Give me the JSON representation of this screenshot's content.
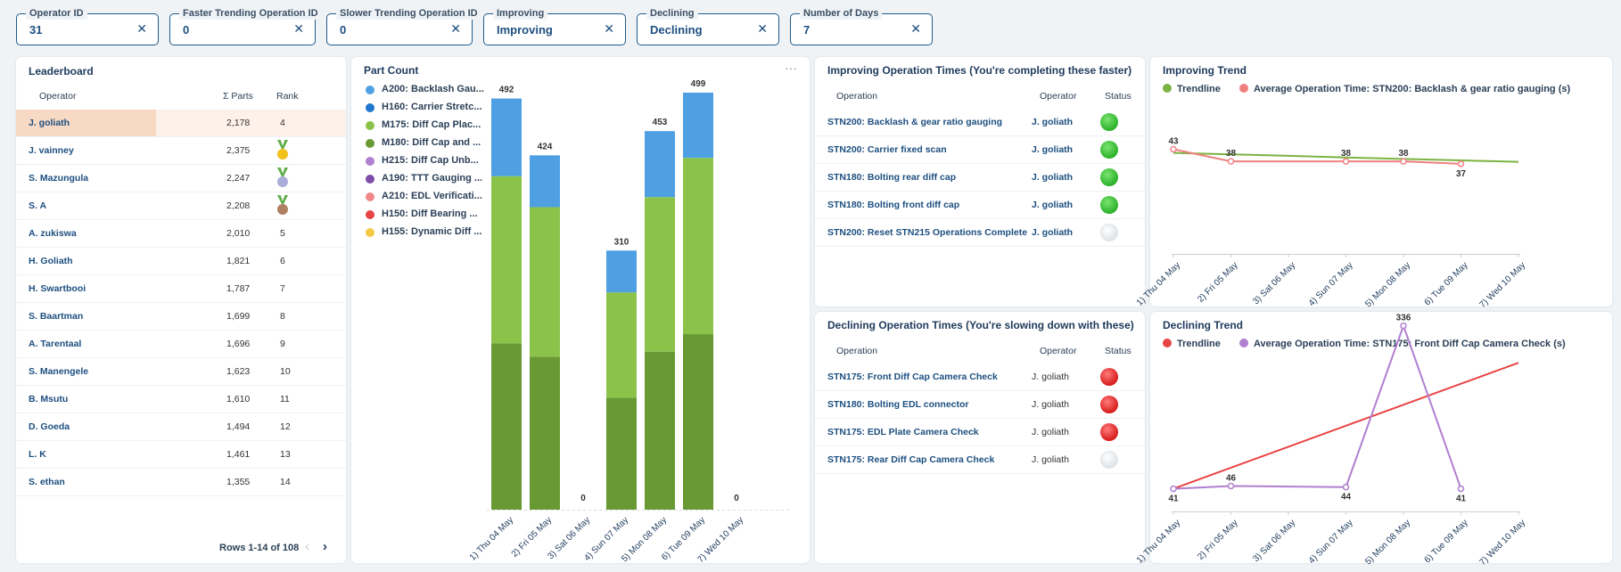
{
  "filters": [
    {
      "label": "Operator ID",
      "value": "31"
    },
    {
      "label": "Faster Trending Operation ID",
      "value": "0"
    },
    {
      "label": "Slower Trending Operation ID",
      "value": "0"
    },
    {
      "label": "Improving",
      "value": "Improving"
    },
    {
      "label": "Declining",
      "value": "Declining"
    },
    {
      "label": "Number of Days",
      "value": "7"
    }
  ],
  "leaderboard": {
    "title": "Leaderboard",
    "col_operator": "Operator",
    "col_parts": "Σ Parts",
    "col_rank": "Rank",
    "rows": [
      {
        "operator": "J. goliath",
        "parts": "2,178",
        "rank": "4",
        "medal": "",
        "highlight": true
      },
      {
        "operator": "J. vainney",
        "parts": "2,375",
        "rank": "",
        "medal": "gold",
        "highlight": false
      },
      {
        "operator": "S. Mazungula",
        "parts": "2,247",
        "rank": "",
        "medal": "silver",
        "highlight": false
      },
      {
        "operator": "S. A",
        "parts": "2,208",
        "rank": "",
        "medal": "bronze",
        "highlight": false
      },
      {
        "operator": "A. zukiswa",
        "parts": "2,010",
        "rank": "5",
        "medal": "",
        "highlight": false
      },
      {
        "operator": "H. Goliath",
        "parts": "1,821",
        "rank": "6",
        "medal": "",
        "highlight": false
      },
      {
        "operator": "H. Swartbooi",
        "parts": "1,787",
        "rank": "7",
        "medal": "",
        "highlight": false
      },
      {
        "operator": "S. Baartman",
        "parts": "1,699",
        "rank": "8",
        "medal": "",
        "highlight": false
      },
      {
        "operator": "A. Tarentaal",
        "parts": "1,696",
        "rank": "9",
        "medal": "",
        "highlight": false
      },
      {
        "operator": "S. Manengele",
        "parts": "1,623",
        "rank": "10",
        "medal": "",
        "highlight": false
      },
      {
        "operator": "B. Msutu",
        "parts": "1,610",
        "rank": "11",
        "medal": "",
        "highlight": false
      },
      {
        "operator": "D. Goeda",
        "parts": "1,494",
        "rank": "12",
        "medal": "",
        "highlight": false
      },
      {
        "operator": "L. K",
        "parts": "1,461",
        "rank": "13",
        "medal": "",
        "highlight": false
      },
      {
        "operator": "S. ethan",
        "parts": "1,355",
        "rank": "14",
        "medal": "",
        "highlight": false
      }
    ],
    "pagination": "Rows 1-14 of 108",
    "prev_icon": "chevron-left-icon",
    "next_icon": "chevron-right-icon"
  },
  "part_count": {
    "title": "Part Count",
    "more_icon": "more-horizontal-icon",
    "legend": [
      {
        "label": "A200: Backlash Gau...",
        "color": "#4f9fe3"
      },
      {
        "label": "H160: Carrier Stretc...",
        "color": "#1f77d0"
      },
      {
        "label": "M175: Diff Cap Plac...",
        "color": "#8bc34a"
      },
      {
        "label": "M180: Diff Cap and ...",
        "color": "#689933"
      },
      {
        "label": "H215: Diff Cap Unb...",
        "color": "#b07fd0"
      },
      {
        "label": "A190: TTT Gauging ...",
        "color": "#7e4ca8"
      },
      {
        "label": "A210: EDL Verificati...",
        "color": "#f08a8a"
      },
      {
        "label": "H150: Diff Bearing ...",
        "color": "#e84545"
      },
      {
        "label": "H155: Dynamic Diff ...",
        "color": "#f5c842"
      }
    ]
  },
  "improving_table": {
    "title": "Improving Operation Times (You're completing these faster)",
    "col_operation": "Operation",
    "col_operator": "Operator",
    "col_status": "Status",
    "rows": [
      {
        "operation": "STN200: Backlash & gear ratio gauging",
        "operator": "J. goliath",
        "status": "green"
      },
      {
        "operation": "STN200: Carrier fixed scan",
        "operator": "J. goliath",
        "status": "green"
      },
      {
        "operation": "STN180: Bolting rear diff cap",
        "operator": "J. goliath",
        "status": "green"
      },
      {
        "operation": "STN180: Bolting front diff cap",
        "operator": "J. goliath",
        "status": "green"
      },
      {
        "operation": "STN200: Reset STN215 Operations Complete",
        "operator": "J. goliath",
        "status": "empty"
      }
    ]
  },
  "declining_table": {
    "title": "Declining Operation Times (You're slowing down with these)",
    "col_operation": "Operation",
    "col_operator": "Operator",
    "col_status": "Status",
    "rows": [
      {
        "operation": "STN175: Front Diff Cap Camera Check",
        "operator": "J. goliath",
        "status": "red"
      },
      {
        "operation": "STN180: Bolting EDL connector",
        "operator": "J. goliath",
        "status": "red"
      },
      {
        "operation": "STN175: EDL Plate Camera Check",
        "operator": "J. goliath",
        "status": "red"
      },
      {
        "operation": "STN175: Rear Diff Cap Camera Check",
        "operator": "J. goliath",
        "status": "empty"
      }
    ]
  },
  "improving_trend": {
    "title": "Improving Trend"
  },
  "declining_trend": {
    "title": "Declining Trend"
  },
  "chart_data": [
    {
      "type": "bar",
      "title": "Part Count",
      "stacked": true,
      "categories": [
        "1) Thu 04 May",
        "2) Fri 05 May",
        "3) Sat 06 May",
        "4) Sun 07 May",
        "5) Mon 08 May",
        "6) Tue 09 May",
        "7) Wed 10 May"
      ],
      "totals": [
        492,
        424,
        0,
        310,
        453,
        499,
        0
      ],
      "series": [
        {
          "name": "M180: Diff Cap and ...",
          "color": "#689933",
          "values": [
            199,
            183,
            0,
            134,
            189,
            210,
            0
          ]
        },
        {
          "name": "M175: Diff Cap Plac...",
          "color": "#8bc34a",
          "values": [
            200,
            179,
            0,
            126,
            185,
            211,
            0
          ]
        },
        {
          "name": "A200: Backlash Gau...",
          "color": "#4f9fe3",
          "values": [
            93,
            62,
            0,
            50,
            79,
            78,
            0
          ]
        }
      ],
      "legend_position": "left",
      "ylim": [
        0,
        499
      ]
    },
    {
      "type": "line",
      "title": "Improving Trend",
      "categories": [
        "1) Thu 04 May",
        "2) Fri 05 May",
        "3) Sat 06 May",
        "4) Sun 07 May",
        "5) Mon 08 May",
        "6) Tue 09 May",
        "7) Wed 10 May"
      ],
      "series": [
        {
          "name": "Trendline",
          "color": "#7cb342",
          "values": [
            41.5,
            40.9,
            40.3,
            39.6,
            39.0,
            38.4,
            37.8
          ]
        },
        {
          "name": "Average Operation Time: STN200: Backlash & gear ratio gauging (s)",
          "color": "#f08080",
          "values": [
            43,
            38,
            null,
            38,
            38,
            37,
            null
          ],
          "labels": [
            "43",
            "38",
            "",
            "38",
            "38",
            "37",
            ""
          ]
        }
      ],
      "legend_position": "top-left",
      "ylim": [
        0,
        45
      ]
    },
    {
      "type": "line",
      "title": "Declining Trend",
      "categories": [
        "1) Thu 04 May",
        "2) Fri 05 May",
        "3) Sat 06 May",
        "4) Sun 07 May",
        "5) Mon 08 May",
        "6) Tue 09 May",
        "7) Wed 10 May"
      ],
      "series": [
        {
          "name": "Trendline",
          "color": "#e84545",
          "values": [
            41,
            79,
            117,
            155,
            193,
            231,
            269
          ]
        },
        {
          "name": "Average Operation Time: STN175: Front Diff Cap Camera Check (s)",
          "color": "#b07fd0",
          "values": [
            41,
            46,
            null,
            44,
            336,
            41,
            null
          ],
          "labels": [
            "41",
            "46",
            "",
            "44",
            "336",
            "41",
            ""
          ]
        }
      ],
      "legend_position": "top-left",
      "ylim": [
        0,
        345
      ]
    }
  ]
}
